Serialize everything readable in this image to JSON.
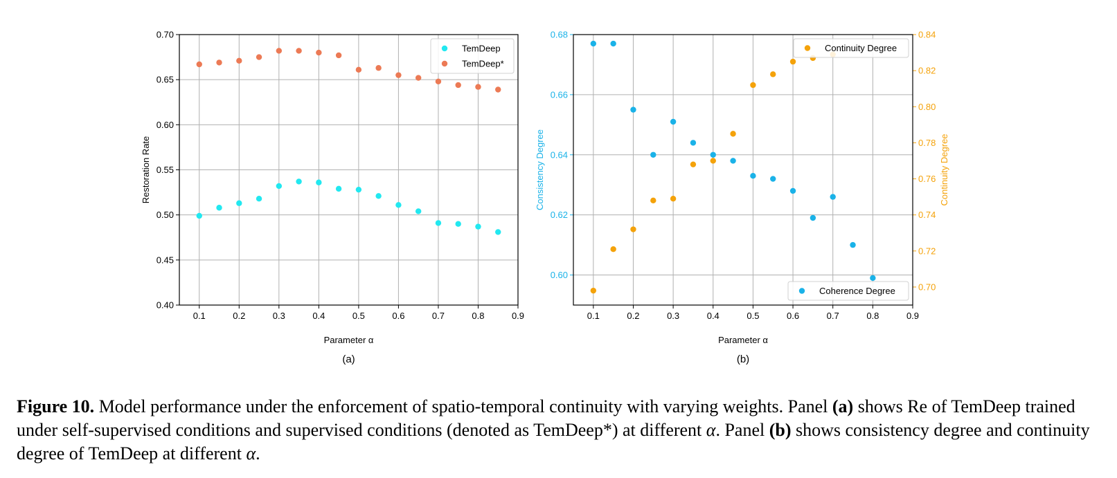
{
  "colors": {
    "temdeep": "#22e8f0",
    "temdeep_star": "#ec7a55",
    "coherence": "#1ab2e8",
    "continuity": "#f4a20a",
    "grid": "#b0b0b0"
  },
  "chart_data": [
    {
      "type": "scatter",
      "panel_label": "(a)",
      "xlabel": "Parameter α",
      "ylabel": "Restoration Rate",
      "xlim": [
        0.05,
        0.9
      ],
      "ylim": [
        0.4,
        0.7
      ],
      "xticks": [
        "0.1",
        "0.2",
        "0.3",
        "0.4",
        "0.5",
        "0.6",
        "0.7",
        "0.8",
        "0.9"
      ],
      "yticks": [
        "0.40",
        "0.45",
        "0.50",
        "0.55",
        "0.60",
        "0.65",
        "0.70"
      ],
      "grid": true,
      "legend_position": "top-right",
      "x": [
        0.1,
        0.15,
        0.2,
        0.25,
        0.3,
        0.35,
        0.4,
        0.45,
        0.5,
        0.55,
        0.6,
        0.65,
        0.7,
        0.75,
        0.8,
        0.85
      ],
      "series": [
        {
          "name": "TemDeep",
          "color_key": "temdeep",
          "values": [
            0.499,
            0.508,
            0.513,
            0.518,
            0.532,
            0.537,
            0.536,
            0.529,
            0.528,
            0.521,
            0.511,
            0.504,
            0.491,
            0.49,
            0.487,
            0.481
          ]
        },
        {
          "name": "TemDeep*",
          "color_key": "temdeep_star",
          "values": [
            0.667,
            0.669,
            0.671,
            0.675,
            0.682,
            0.682,
            0.68,
            0.677,
            0.661,
            0.663,
            0.655,
            0.652,
            0.648,
            0.644,
            0.642,
            0.639
          ]
        }
      ]
    },
    {
      "type": "scatter",
      "panel_label": "(b)",
      "xlabel": "Parameter α",
      "ylabel_left": "Consistency Degree",
      "ylabel_right": "Continuity Degree",
      "xlim": [
        0.05,
        0.9
      ],
      "ylim_left": [
        0.59,
        0.68
      ],
      "ylim_right": [
        0.69,
        0.84
      ],
      "xticks": [
        "0.1",
        "0.2",
        "0.3",
        "0.4",
        "0.5",
        "0.6",
        "0.7",
        "0.8",
        "0.9"
      ],
      "yticks_left": [
        "0.60",
        "0.62",
        "0.64",
        "0.66",
        "0.68"
      ],
      "yticks_right": [
        "0.70",
        "0.72",
        "0.74",
        "0.76",
        "0.78",
        "0.80",
        "0.82",
        "0.84"
      ],
      "grid": true,
      "series": [
        {
          "name": "Coherence Degree",
          "axis": "left",
          "color_key": "coherence",
          "legend_position": "bottom-right",
          "x": [
            0.1,
            0.15,
            0.2,
            0.25,
            0.3,
            0.35,
            0.4,
            0.45,
            0.5,
            0.55,
            0.6,
            0.65,
            0.7,
            0.75,
            0.8
          ],
          "values": [
            0.677,
            0.677,
            0.655,
            0.64,
            0.651,
            0.644,
            0.64,
            0.638,
            0.633,
            0.632,
            0.628,
            0.619,
            0.626,
            0.61,
            0.599
          ]
        },
        {
          "name": "Continuity Degree",
          "axis": "right",
          "color_key": "continuity",
          "legend_position": "top-right",
          "x": [
            0.1,
            0.15,
            0.2,
            0.25,
            0.3,
            0.35,
            0.4,
            0.45,
            0.5,
            0.55,
            0.6,
            0.65,
            0.7
          ],
          "values": [
            0.698,
            0.721,
            0.732,
            0.748,
            0.749,
            0.768,
            0.77,
            0.785,
            0.812,
            0.818,
            0.825,
            0.827,
            0.829
          ]
        }
      ]
    }
  ],
  "caption": {
    "label": "Figure 10.",
    "text_1": " Model performance under the enforcement of spatio-temporal continuity with varying weights. Panel ",
    "panel_a": "(a)",
    "text_2": " shows Re of TemDeep trained under self-supervised conditions and supervised conditions (denoted as TemDeep*) at different ",
    "alpha_1": "α",
    "text_3": ". Panel ",
    "panel_b": "(b)",
    "text_4": " shows consistency degree and continuity degree of TemDeep at different ",
    "alpha_2": "α",
    "text_5": "."
  }
}
